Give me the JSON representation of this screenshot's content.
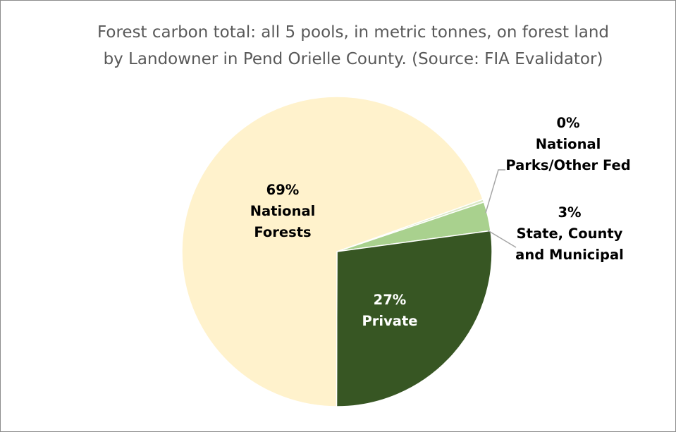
{
  "chart_data": {
    "type": "pie",
    "title": "Forest carbon total: all 5 pools, in metric tonnes, on forest land\nby Landowner in Pend Orielle County. (Source: FIA Evalidator)",
    "categories": [
      "National Forests",
      "National Parks/Other Fed",
      "State, County and Municipal",
      "Private"
    ],
    "values": [
      69,
      0.3,
      3,
      27
    ],
    "data_labels": [
      [
        "69%",
        "National",
        "Forests"
      ],
      [
        "0%",
        "National",
        "Parks/Other Fed"
      ],
      [
        "3%",
        "State, County",
        "and Municipal"
      ],
      [
        "27%",
        "Private"
      ]
    ],
    "colors": [
      "#fff2cc",
      "#d9e8c4",
      "#a9d18e",
      "#375623"
    ],
    "label_colors": [
      "#000000",
      "#000000",
      "#000000",
      "#ffffff"
    ],
    "leader_line_color": "#a6a6a6",
    "legend": "none"
  }
}
